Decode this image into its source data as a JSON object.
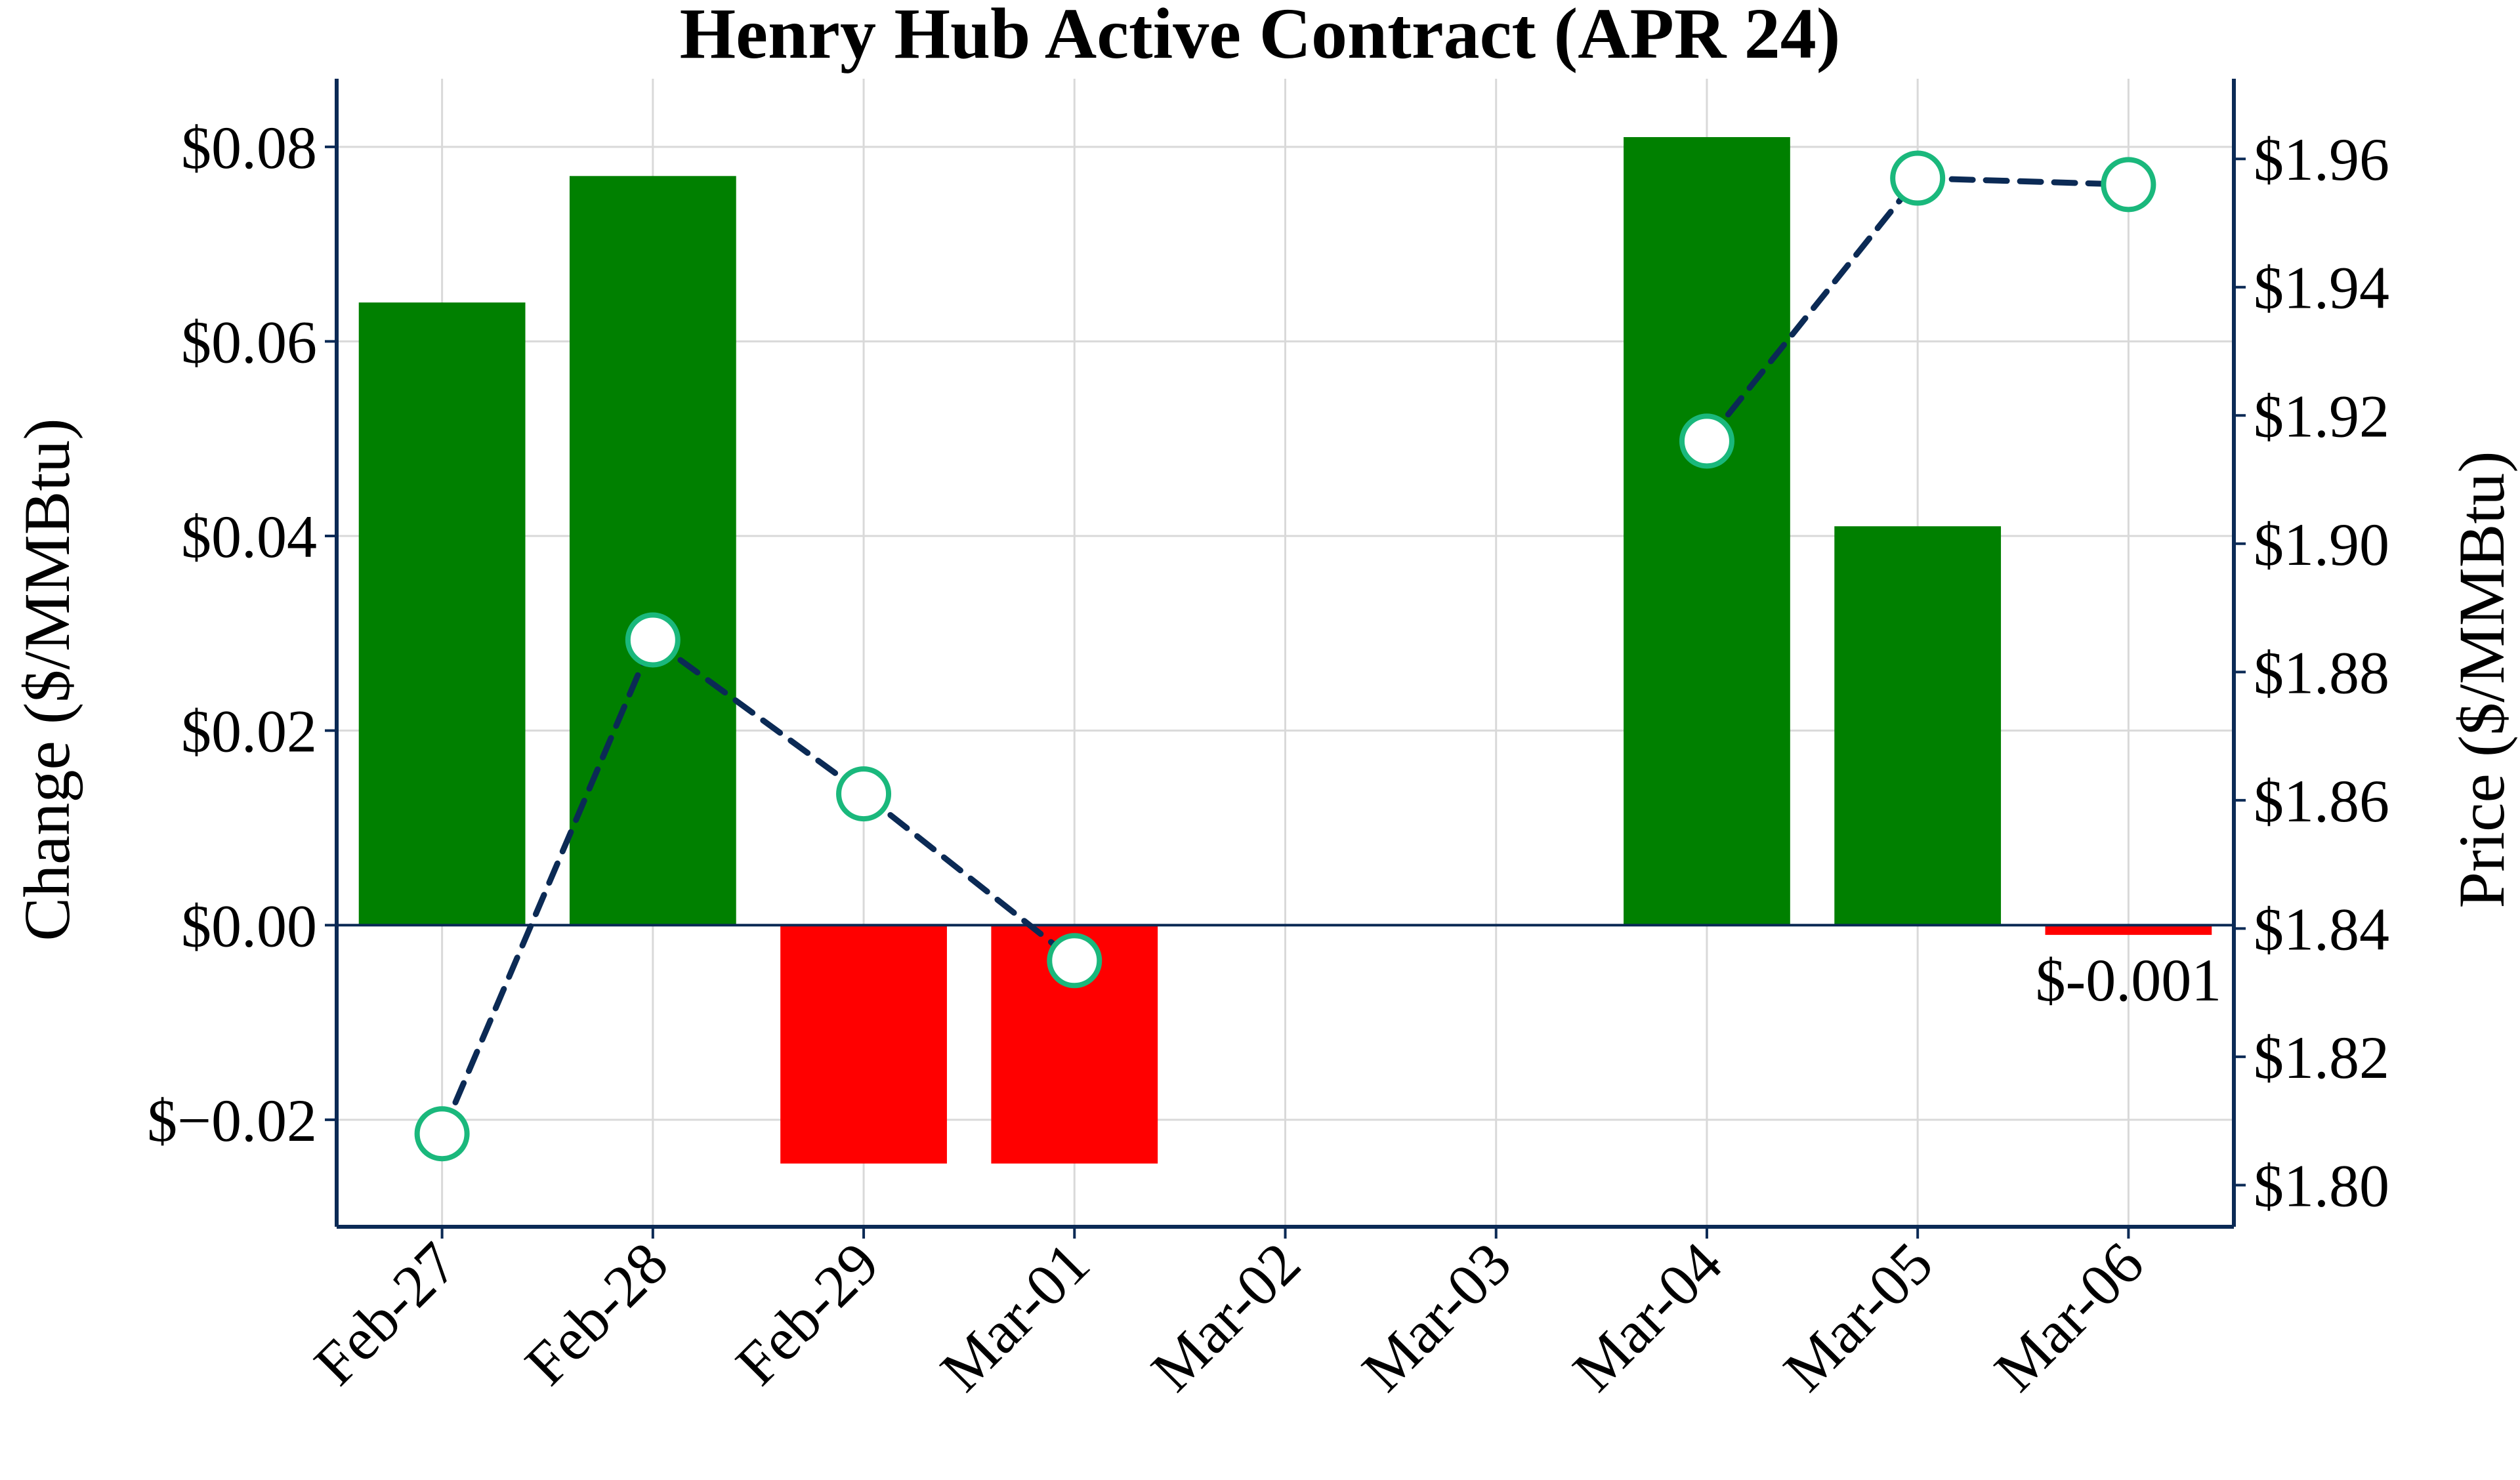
{
  "chart_data": {
    "type": "bar",
    "title": "Henry Hub Active Contract (APR 24)",
    "categories": [
      "Feb-27",
      "Feb-28",
      "Feb-29",
      "Mar-01",
      "Mar-02",
      "Mar-03",
      "Mar-04",
      "Mar-05",
      "Mar-06"
    ],
    "y_left": {
      "label": "Change ($/MMBtu)",
      "range": [
        -0.031,
        0.087
      ],
      "ticks": [
        -0.02,
        0.0,
        0.02,
        0.04,
        0.06,
        0.08
      ],
      "tick_labels": [
        "$−0.02",
        "$0.00",
        "$0.02",
        "$0.04",
        "$0.06",
        "$0.08"
      ]
    },
    "y_right": {
      "label": "Price ($/MMBtu)",
      "range": [
        1.7935,
        1.9725
      ],
      "ticks": [
        1.8,
        1.82,
        1.84,
        1.86,
        1.88,
        1.9,
        1.92,
        1.94,
        1.96
      ],
      "tick_labels": [
        "$1.80",
        "$1.82",
        "$1.84",
        "$1.86",
        "$1.88",
        "$1.90",
        "$1.92",
        "$1.94",
        "$1.96"
      ]
    },
    "series": [
      {
        "name": "Change",
        "kind": "bar",
        "axis": "left",
        "values": [
          0.064,
          0.077,
          -0.0245,
          -0.0245,
          null,
          null,
          0.081,
          0.041,
          -0.001
        ],
        "positive_color": "#008000",
        "negative_color": "#ff0000"
      },
      {
        "name": "Price",
        "kind": "line",
        "axis": "right",
        "line_style": "dashed",
        "line_color": "#0b2a55",
        "marker_edge_color": "#1ab87c",
        "marker_face_color": "#ffffff",
        "values": [
          1.808,
          1.885,
          1.861,
          1.835,
          null,
          null,
          1.916,
          1.957,
          1.956
        ]
      }
    ],
    "annotations": [
      {
        "category": "Mar-06",
        "text": "$-0.001"
      }
    ],
    "grid": true,
    "colors": {
      "axis": "#0b2a55",
      "grid": "#d9d9d9",
      "zero_line": "#0b2a55"
    }
  }
}
